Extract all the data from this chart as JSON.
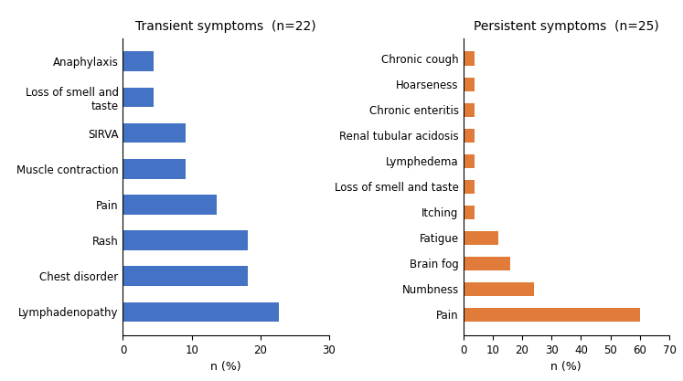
{
  "transient_title": "Transient symptoms  (n=22)",
  "transient_labels": [
    "Anaphylaxis",
    "Loss of smell and\ntaste",
    "SIRVA",
    "Muscle contraction",
    "Pain",
    "Rash",
    "Chest disorder",
    "Lymphadenopathy"
  ],
  "transient_values": [
    4.5,
    4.5,
    9.1,
    9.1,
    13.6,
    18.2,
    18.2,
    22.7
  ],
  "transient_color": "#4472C4",
  "transient_xlim": [
    0,
    30
  ],
  "transient_xticks": [
    0,
    10,
    20,
    30
  ],
  "persistent_title": "Persistent symptoms  (n=25)",
  "persistent_labels": [
    "Chronic cough",
    "Hoarseness",
    "Chronic enteritis",
    "Renal tubular acidosis",
    "Lymphedema",
    "Loss of smell and taste",
    "Itching",
    "Fatigue",
    "Brain fog",
    "Numbness",
    "Pain"
  ],
  "persistent_values": [
    4.0,
    4.0,
    4.0,
    4.0,
    4.0,
    4.0,
    4.0,
    12.0,
    16.0,
    24.0,
    60.0
  ],
  "persistent_color": "#E07B39",
  "persistent_xlim": [
    0,
    70
  ],
  "persistent_xticks": [
    0,
    10,
    20,
    30,
    40,
    50,
    60,
    70
  ],
  "xlabel": "n (%)",
  "background_color": "#ffffff",
  "bar_height": 0.55,
  "title_fontsize": 10,
  "label_fontsize": 8.5,
  "tick_fontsize": 8.5,
  "xlabel_fontsize": 9
}
